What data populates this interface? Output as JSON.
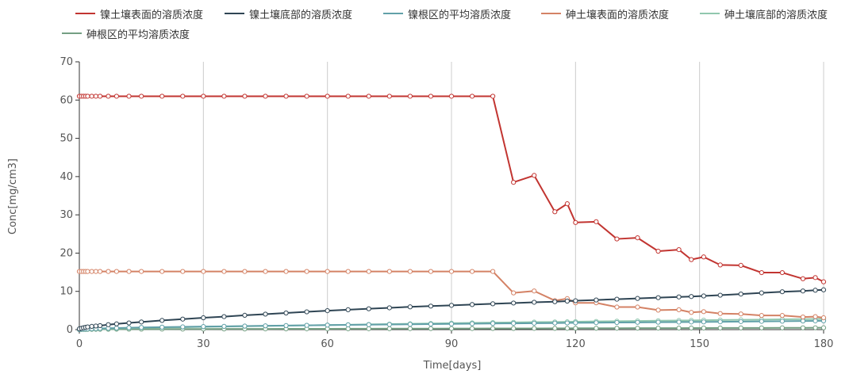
{
  "chart_data": {
    "type": "line",
    "xlabel": "Time[days]",
    "ylabel": "Conc[mg/cm3]",
    "xlim": [
      0,
      180
    ],
    "ylim": [
      0,
      70
    ],
    "x_ticks": [
      0,
      30,
      60,
      90,
      120,
      150,
      180
    ],
    "y_ticks": [
      0,
      10,
      20,
      30,
      40,
      50,
      60,
      70
    ],
    "grid": "vertical lines at x ticks",
    "legend_position": "top",
    "x": [
      0,
      0.5,
      1,
      1.5,
      2,
      3,
      4,
      5,
      7,
      9,
      12,
      15,
      20,
      25,
      30,
      35,
      40,
      45,
      50,
      55,
      60,
      65,
      70,
      75,
      80,
      85,
      90,
      95,
      100,
      105,
      110,
      115,
      118,
      120,
      125,
      130,
      135,
      140,
      145,
      148,
      151,
      155,
      160,
      165,
      170,
      175,
      178,
      180
    ],
    "series": [
      {
        "name": "镍土壤表面的溶质浓度",
        "color": "#c23531",
        "values": [
          61,
          61,
          61,
          61,
          61,
          61,
          61,
          61,
          61,
          61,
          61,
          61,
          61,
          61,
          61,
          61,
          61,
          61,
          61,
          61,
          61,
          61,
          61,
          61,
          61,
          61,
          61,
          61,
          61,
          38.5,
          40.3,
          30.8,
          32.9,
          28,
          28.2,
          23.7,
          24,
          20.5,
          20.9,
          18.3,
          19,
          16.9,
          16.8,
          14.9,
          14.9,
          13.3,
          13.6,
          12.5
        ]
      },
      {
        "name": "镍土壤底部的溶质浓度",
        "color": "#2f4554",
        "values": [
          0.2,
          0.35,
          0.5,
          0.6,
          0.7,
          0.85,
          0.95,
          1.05,
          1.3,
          1.5,
          1.75,
          2,
          2.4,
          2.75,
          3.1,
          3.4,
          3.75,
          4.05,
          4.35,
          4.65,
          4.95,
          5.2,
          5.45,
          5.7,
          5.95,
          6.15,
          6.35,
          6.55,
          6.75,
          6.95,
          7.15,
          7.3,
          7.45,
          7.55,
          7.75,
          7.95,
          8.15,
          8.35,
          8.55,
          8.65,
          8.8,
          9.0,
          9.3,
          9.6,
          9.9,
          10.1,
          10.3,
          10.4
        ]
      },
      {
        "name": "镍根区的平均溶质浓度",
        "color": "#61a0a8",
        "values": [
          0.05,
          0.1,
          0.12,
          0.15,
          0.18,
          0.22,
          0.26,
          0.3,
          0.36,
          0.42,
          0.5,
          0.57,
          0.65,
          0.72,
          0.8,
          0.86,
          0.93,
          1.0,
          1.06,
          1.12,
          1.18,
          1.24,
          1.3,
          1.35,
          1.4,
          1.45,
          1.5,
          1.55,
          1.6,
          1.64,
          1.68,
          1.72,
          1.75,
          1.78,
          1.82,
          1.86,
          1.9,
          1.94,
          1.97,
          2.0,
          2.02,
          2.05,
          2.1,
          2.15,
          2.2,
          2.25,
          2.28,
          2.3
        ]
      },
      {
        "name": "砷土壤表面的溶质浓度",
        "color": "#d48265",
        "values": [
          15.2,
          15.2,
          15.2,
          15.2,
          15.2,
          15.2,
          15.2,
          15.2,
          15.2,
          15.2,
          15.2,
          15.2,
          15.2,
          15.2,
          15.2,
          15.2,
          15.2,
          15.2,
          15.2,
          15.2,
          15.2,
          15.2,
          15.2,
          15.2,
          15.2,
          15.2,
          15.2,
          15.2,
          15.2,
          9.6,
          10.1,
          7.6,
          8.1,
          7.0,
          7.0,
          5.9,
          5.9,
          5.1,
          5.2,
          4.5,
          4.7,
          4.2,
          4.1,
          3.7,
          3.7,
          3.3,
          3.4,
          3.1
        ]
      },
      {
        "name": "砷土壤底部的溶质浓度",
        "color": "#91c7ae",
        "values": [
          0.05,
          0.08,
          0.1,
          0.12,
          0.14,
          0.17,
          0.2,
          0.23,
          0.28,
          0.33,
          0.4,
          0.46,
          0.55,
          0.63,
          0.72,
          0.8,
          0.88,
          0.96,
          1.04,
          1.12,
          1.2,
          1.28,
          1.36,
          1.44,
          1.52,
          1.6,
          1.68,
          1.76,
          1.84,
          1.9,
          1.96,
          2.0,
          2.04,
          2.08,
          2.14,
          2.2,
          2.26,
          2.32,
          2.38,
          2.42,
          2.46,
          2.5,
          2.56,
          2.62,
          2.68,
          2.74,
          2.78,
          2.8
        ]
      },
      {
        "name": "砷根区的平均溶质浓度",
        "color": "#749f83",
        "values": [
          0.02,
          0.03,
          0.04,
          0.05,
          0.06,
          0.07,
          0.08,
          0.09,
          0.1,
          0.11,
          0.12,
          0.13,
          0.14,
          0.15,
          0.16,
          0.17,
          0.18,
          0.19,
          0.2,
          0.21,
          0.22,
          0.23,
          0.24,
          0.25,
          0.26,
          0.27,
          0.28,
          0.29,
          0.3,
          0.31,
          0.32,
          0.33,
          0.34,
          0.35,
          0.36,
          0.37,
          0.38,
          0.39,
          0.4,
          0.41,
          0.42,
          0.43,
          0.44,
          0.45,
          0.46,
          0.47,
          0.48,
          0.49
        ]
      }
    ]
  }
}
